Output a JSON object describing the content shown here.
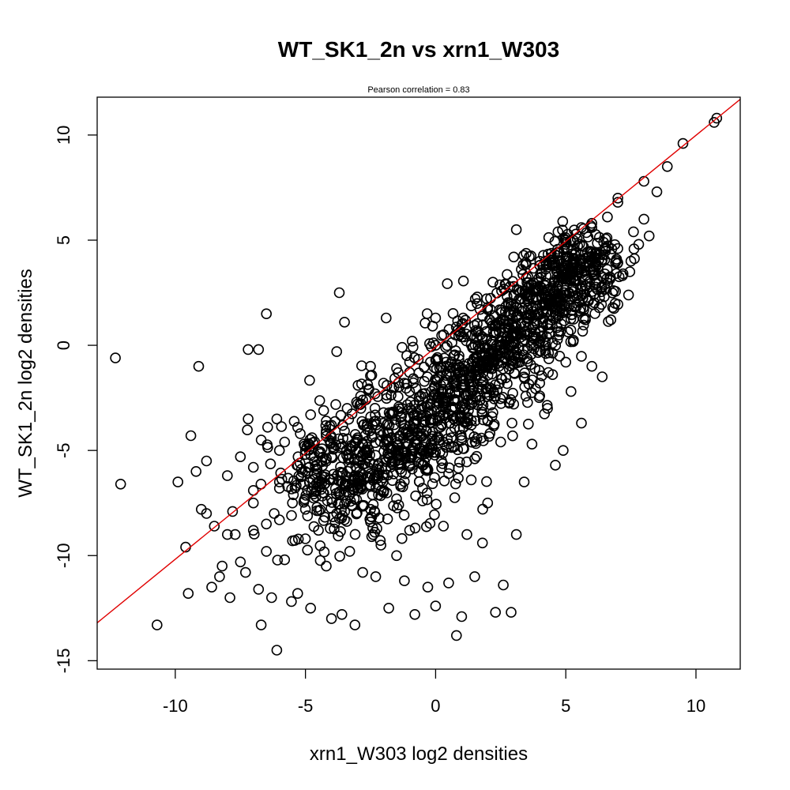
{
  "chart_data": {
    "type": "scatter",
    "title": "WT_SK1_2n vs xrn1_W303",
    "subtitle": "Pearson correlation =  0.83",
    "xlabel": "xrn1_W303 log2 densities",
    "ylabel": "WT_SK1_2n log2 densities",
    "xlim": [
      -13.0,
      11.7
    ],
    "ylim": [
      -15.4,
      11.8
    ],
    "xticks": [
      -10,
      -5,
      0,
      5,
      10
    ],
    "yticks": [
      -15,
      -10,
      -5,
      0,
      5,
      10
    ],
    "xtick_labels": [
      "-10",
      "-5",
      "0",
      "5",
      "10"
    ],
    "ytick_labels": [
      "-15",
      "-10",
      "-5",
      "0",
      "5",
      "10"
    ],
    "grid": false,
    "point_color": "#000000",
    "line_color": "#e00000",
    "fit_line": {
      "x": [
        -13.0,
        11.7
      ],
      "y": [
        -13.2,
        11.7
      ]
    },
    "points": {
      "x": [
        -12.3,
        -12.1,
        -10.7,
        -9.9,
        -9.6,
        -9.5,
        -9.2,
        -9.1,
        -9.0,
        -8.8,
        -8.6,
        -8.5,
        -8.3,
        -8.2,
        -8.0,
        -7.9,
        -7.7,
        -7.5,
        -7.3,
        -7.2,
        -7.0,
        -6.8,
        -6.7,
        -6.5,
        -6.3,
        -6.1,
        -6.0,
        -5.8,
        -5.5,
        -5.3,
        -5.0,
        -4.8,
        -4.5,
        -4.2,
        -4.0,
        -3.8,
        -3.6,
        -3.3,
        -3.1,
        -3.0,
        -2.8,
        -2.5,
        -2.3,
        -2.1,
        -1.8,
        -1.5,
        -1.2,
        -1.0,
        -0.8,
        -0.5,
        -0.3,
        0.0,
        0.3,
        0.5,
        0.8,
        1.0,
        1.2,
        1.5,
        1.8,
        2.0,
        2.3,
        2.6,
        2.9,
        3.1,
        3.4,
        3.7,
        4.0,
        4.3,
        4.6,
        4.9,
        5.2,
        5.6,
        6.0,
        6.4,
        6.8,
        7.2,
        7.5,
        7.8,
        8.2,
        8.5,
        8.9,
        9.5,
        10.7,
        10.8,
        -6.5,
        -3.7,
        -7.2,
        -6.8,
        -3.5,
        -1.9,
        -0.9,
        0.0,
        1.6,
        4.7,
        5.6,
        6.6,
        3.1,
        3.0,
        2.2,
        1.4,
        0.9,
        -0.2,
        -1.5,
        -2.5,
        -3.8,
        -6.7,
        -6.1,
        -9.4,
        -8.8,
        -7.8,
        -4.8,
        -2.0,
        -5.3,
        -4.0,
        -3.0,
        -2.0,
        -1.0,
        0.0,
        1.0,
        2.0,
        3.0,
        4.0,
        5.0,
        6.0,
        7.0,
        -6.0,
        -5.0,
        -4.0,
        -3.0,
        -2.0,
        -1.0,
        0.0,
        1.0,
        2.0,
        3.0,
        4.0,
        5.0,
        6.0,
        7.0,
        8.0,
        -7.0,
        -6.0,
        -5.0,
        -4.0,
        -3.0,
        -2.0,
        -1.0,
        0.0,
        1.0,
        2.0,
        3.0,
        -8.0,
        -7.0,
        -6.0,
        -5.0,
        -4.0,
        -3.0,
        -2.0,
        -1.0,
        0.0,
        1.0,
        2.0,
        3.0,
        4.0,
        5.0,
        -7.5,
        -6.5,
        -5.5,
        -4.5,
        -3.5,
        -2.5,
        -1.5,
        -0.5,
        0.5,
        1.5,
        2.5,
        -5.8,
        -4.2,
        -2.8,
        -1.2,
        0.4,
        1.8,
        3.3,
        4.5,
        5.8,
        7.0,
        7.6,
        8.0,
        -7.0,
        -5.2,
        -3.4,
        -1.6,
        0.2,
        1.8,
        2.6,
        -6.2,
        -4.6,
        -3.0,
        -1.4,
        0.6,
        2.2
      ],
      "y": [
        -0.6,
        -6.6,
        -13.3,
        -6.5,
        -9.6,
        -11.8,
        -6.0,
        -1.0,
        -7.8,
        -5.5,
        -11.5,
        -8.6,
        -11.0,
        -10.5,
        -6.2,
        -12.0,
        -9.0,
        -5.3,
        -10.8,
        -3.5,
        -6.9,
        -11.6,
        -13.3,
        -8.5,
        -12.0,
        -14.5,
        -5.0,
        -10.2,
        -7.5,
        -11.8,
        -9.2,
        -12.5,
        -6.5,
        -10.5,
        -13.0,
        -8.0,
        -12.8,
        -9.8,
        -13.3,
        -6.9,
        -10.8,
        -8.4,
        -11.0,
        -9.5,
        -12.5,
        -10.0,
        -11.2,
        -8.8,
        -12.8,
        -7.4,
        -11.5,
        -12.4,
        -8.6,
        -11.3,
        -13.8,
        -12.9,
        -9.0,
        -11.0,
        -9.4,
        -7.5,
        -12.7,
        -11.4,
        -12.7,
        -9.0,
        -6.5,
        -4.7,
        -2.4,
        -3.0,
        -5.7,
        -5.0,
        -2.2,
        -3.7,
        -1.0,
        -1.5,
        1.8,
        3.4,
        4.0,
        4.8,
        5.2,
        7.3,
        8.5,
        9.6,
        10.6,
        10.8,
        1.5,
        2.5,
        -0.2,
        -0.2,
        1.1,
        1.3,
        0.2,
        1.3,
        2.3,
        5.4,
        5.6,
        6.1,
        5.5,
        4.2,
        3.0,
        0.5,
        -0.5,
        -0.8,
        -1.1,
        -1.0,
        -0.3,
        -4.5,
        -3.5,
        -4.3,
        -8.0,
        -7.9,
        -3.3,
        -7.0,
        -3.9,
        -4.4,
        -4.4,
        -3.2,
        -2.2,
        -0.7,
        0.4,
        1.7,
        2.4,
        3.8,
        5.0,
        5.6,
        7.0,
        -6.5,
        -5.0,
        -3.8,
        -2.8,
        -1.8,
        -0.8,
        0.0,
        1.0,
        1.8,
        2.8,
        3.8,
        4.8,
        5.8,
        6.8,
        7.8,
        -7.5,
        -6.8,
        -6.0,
        -5.3,
        -4.5,
        -3.7,
        -3.0,
        -2.3,
        -1.6,
        -0.9,
        -0.1,
        -9.0,
        -8.8,
        -8.3,
        -7.8,
        -7.3,
        -6.8,
        -6.3,
        -5.7,
        -5.1,
        -4.4,
        -3.6,
        -2.8,
        -1.8,
        -0.8,
        -10.3,
        -9.8,
        -9.3,
        -8.8,
        -8.3,
        -7.8,
        -7.3,
        -6.8,
        -6.1,
        -5.4,
        -4.6,
        -4.6,
        -3.6,
        -2.6,
        -1.8,
        -0.8,
        0.4,
        1.6,
        2.8,
        3.8,
        4.6,
        5.4,
        6.0,
        -5.8,
        -4.2,
        -3.0,
        -2.0,
        -1.0,
        0.3,
        1.2,
        -8.0,
        -7.2,
        -6.4,
        -5.6,
        -4.4,
        -3.2
      ]
    },
    "dense_core": {
      "description_free": true,
      "centers_x": [
        -5.0,
        -3.5,
        -2.0,
        -0.5,
        1.0,
        2.0,
        3.0,
        4.0,
        5.0,
        6.0
      ],
      "centers_y": [
        -6.5,
        -6.0,
        -5.2,
        -4.2,
        -2.5,
        -1.0,
        0.5,
        1.8,
        3.0,
        4.5
      ],
      "spread_y": [
        1.8,
        2.0,
        1.9,
        1.8,
        1.6,
        1.4,
        1.2,
        1.1,
        1.0,
        0.9
      ]
    }
  }
}
